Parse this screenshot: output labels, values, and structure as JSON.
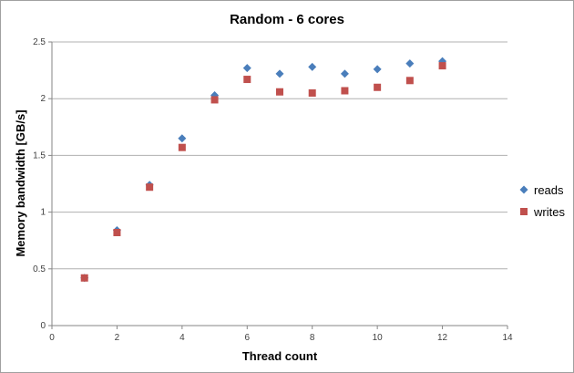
{
  "chart_data": {
    "type": "scatter",
    "title": "Random - 6 cores",
    "xlabel": "Thread count",
    "ylabel": "Memory bandwidth  [GB/s]",
    "xlim": [
      0,
      14
    ],
    "ylim": [
      0,
      2.5
    ],
    "xticks": [
      "0",
      "2",
      "4",
      "6",
      "8",
      "10",
      "12",
      "14"
    ],
    "yticks": [
      "0",
      "0.5",
      "1",
      "1.5",
      "2",
      "2.5"
    ],
    "grid": "horizontal",
    "legend_position": "right",
    "x": [
      1,
      2,
      3,
      4,
      5,
      6,
      7,
      8,
      9,
      10,
      11,
      12
    ],
    "series": [
      {
        "name": "reads",
        "marker": "diamond",
        "color": "#4a7ebb",
        "values": [
          0.42,
          0.84,
          1.24,
          1.65,
          2.03,
          2.27,
          2.22,
          2.28,
          2.22,
          2.26,
          2.31,
          2.33
        ]
      },
      {
        "name": "writes",
        "marker": "square",
        "color": "#c0504d",
        "values": [
          0.42,
          0.82,
          1.22,
          1.57,
          1.99,
          2.17,
          2.06,
          2.05,
          2.07,
          2.1,
          2.16,
          2.29
        ]
      }
    ]
  }
}
